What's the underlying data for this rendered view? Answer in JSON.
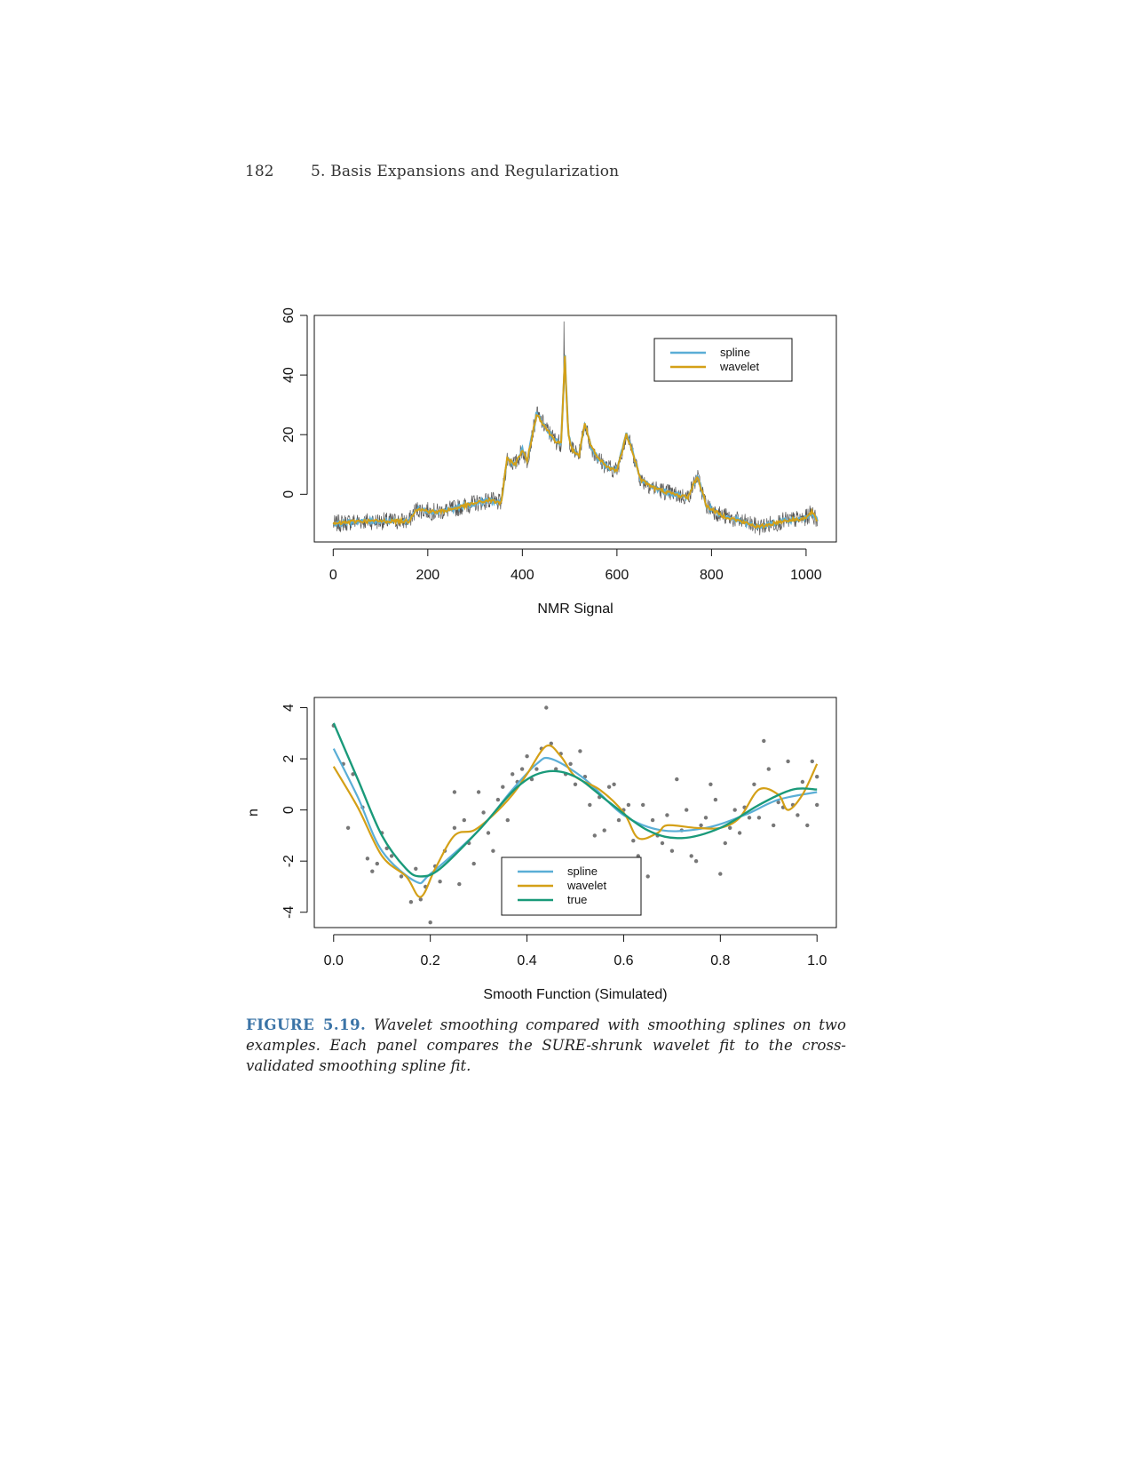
{
  "header": {
    "page_number": "182",
    "running_head": "5.  Basis Expansions and Regularization"
  },
  "chart_data": [
    {
      "type": "line",
      "xlabel": "NMR Signal",
      "ylabel": "",
      "xlim": [
        -40,
        1064
      ],
      "ylim": [
        -16,
        60
      ],
      "x_ticks": [
        "0",
        "200",
        "400",
        "600",
        "800",
        "1000"
      ],
      "y_ticks": [
        "0",
        "20",
        "40",
        "60"
      ],
      "legend_position": "top-right",
      "series": [
        {
          "name": "spline",
          "color": "#5aaed6"
        },
        {
          "name": "wavelet",
          "color": "#d4a017"
        }
      ],
      "raw_data_color": "#555555",
      "trend_knots": [
        [
          0,
          -10
        ],
        [
          50,
          -9
        ],
        [
          100,
          -9
        ],
        [
          160,
          -9
        ],
        [
          175,
          -5
        ],
        [
          220,
          -6
        ],
        [
          250,
          -5
        ],
        [
          300,
          -3
        ],
        [
          330,
          -2
        ],
        [
          355,
          -3
        ],
        [
          368,
          12
        ],
        [
          385,
          10
        ],
        [
          400,
          15
        ],
        [
          410,
          11
        ],
        [
          430,
          27
        ],
        [
          455,
          21
        ],
        [
          470,
          18
        ],
        [
          482,
          17
        ],
        [
          490,
          46
        ],
        [
          497,
          20
        ],
        [
          505,
          15
        ],
        [
          520,
          13
        ],
        [
          532,
          24
        ],
        [
          545,
          16
        ],
        [
          560,
          12
        ],
        [
          580,
          9
        ],
        [
          600,
          8
        ],
        [
          620,
          20
        ],
        [
          630,
          16
        ],
        [
          650,
          5
        ],
        [
          680,
          2
        ],
        [
          720,
          0
        ],
        [
          750,
          -1
        ],
        [
          770,
          6
        ],
        [
          790,
          -4
        ],
        [
          820,
          -7
        ],
        [
          860,
          -9
        ],
        [
          900,
          -11
        ],
        [
          950,
          -9
        ],
        [
          1000,
          -8
        ],
        [
          1012,
          -6
        ],
        [
          1024,
          -9
        ]
      ]
    },
    {
      "type": "line",
      "xlabel": "Smooth Function (Simulated)",
      "ylabel": "n",
      "xlim": [
        -0.04,
        1.04
      ],
      "ylim": [
        -4.6,
        4.4
      ],
      "x_ticks": [
        "0.0",
        "0.2",
        "0.4",
        "0.6",
        "0.8",
        "1.0"
      ],
      "y_ticks": [
        "-4",
        "-2",
        "0",
        "2",
        "4"
      ],
      "legend_position": "bottom-center",
      "series": [
        {
          "name": "spline",
          "color": "#5aaed6",
          "knots": [
            [
              0,
              2.4
            ],
            [
              0.05,
              0.5
            ],
            [
              0.1,
              -1.6
            ],
            [
              0.17,
              -2.8
            ],
            [
              0.2,
              -2.5
            ],
            [
              0.3,
              -0.8
            ],
            [
              0.37,
              0.8
            ],
            [
              0.42,
              1.8
            ],
            [
              0.45,
              2.0
            ],
            [
              0.52,
              1.2
            ],
            [
              0.6,
              -0.2
            ],
            [
              0.68,
              -0.8
            ],
            [
              0.77,
              -0.7
            ],
            [
              0.85,
              -0.2
            ],
            [
              0.92,
              0.4
            ],
            [
              1,
              0.7
            ]
          ]
        },
        {
          "name": "wavelet",
          "color": "#d4a017",
          "knots": [
            [
              0,
              1.7
            ],
            [
              0.05,
              0.1
            ],
            [
              0.1,
              -1.8
            ],
            [
              0.15,
              -2.6
            ],
            [
              0.18,
              -3.4
            ],
            [
              0.21,
              -2.3
            ],
            [
              0.25,
              -1.0
            ],
            [
              0.29,
              -0.8
            ],
            [
              0.33,
              -0.2
            ],
            [
              0.37,
              0.6
            ],
            [
              0.4,
              1.4
            ],
            [
              0.44,
              2.5
            ],
            [
              0.47,
              2.1
            ],
            [
              0.5,
              1.3
            ],
            [
              0.55,
              0.8
            ],
            [
              0.6,
              -0.1
            ],
            [
              0.63,
              -1.1
            ],
            [
              0.67,
              -0.9
            ],
            [
              0.69,
              -0.6
            ],
            [
              0.75,
              -0.7
            ],
            [
              0.8,
              -0.7
            ],
            [
              0.84,
              -0.3
            ],
            [
              0.88,
              0.8
            ],
            [
              0.92,
              0.6
            ],
            [
              0.94,
              0.0
            ],
            [
              0.97,
              0.6
            ],
            [
              1,
              1.8
            ]
          ]
        },
        {
          "name": "true",
          "color": "#1a9a7a",
          "knots": [
            [
              0,
              3.4
            ],
            [
              0.05,
              1.2
            ],
            [
              0.1,
              -1.0
            ],
            [
              0.15,
              -2.3
            ],
            [
              0.18,
              -2.6
            ],
            [
              0.22,
              -2.3
            ],
            [
              0.3,
              -0.8
            ],
            [
              0.38,
              0.9
            ],
            [
              0.44,
              1.5
            ],
            [
              0.5,
              1.3
            ],
            [
              0.57,
              0.3
            ],
            [
              0.65,
              -0.8
            ],
            [
              0.72,
              -1.1
            ],
            [
              0.8,
              -0.7
            ],
            [
              0.88,
              0.2
            ],
            [
              0.95,
              0.8
            ],
            [
              1,
              0.8
            ]
          ]
        }
      ],
      "points": [
        [
          0.0,
          3.3
        ],
        [
          0.02,
          1.8
        ],
        [
          0.03,
          -0.7
        ],
        [
          0.04,
          1.4
        ],
        [
          0.06,
          0.1
        ],
        [
          0.07,
          -1.9
        ],
        [
          0.08,
          -2.4
        ],
        [
          0.09,
          -2.1
        ],
        [
          0.1,
          -0.9
        ],
        [
          0.11,
          -1.5
        ],
        [
          0.12,
          -1.8
        ],
        [
          0.14,
          -2.6
        ],
        [
          0.16,
          -3.6
        ],
        [
          0.17,
          -2.3
        ],
        [
          0.18,
          -3.5
        ],
        [
          0.19,
          -3.0
        ],
        [
          0.2,
          -4.4
        ],
        [
          0.21,
          -2.2
        ],
        [
          0.22,
          -2.8
        ],
        [
          0.23,
          -1.6
        ],
        [
          0.25,
          -0.7
        ],
        [
          0.25,
          0.7
        ],
        [
          0.26,
          -2.9
        ],
        [
          0.27,
          -0.4
        ],
        [
          0.28,
          -1.3
        ],
        [
          0.29,
          -2.1
        ],
        [
          0.3,
          0.7
        ],
        [
          0.31,
          -0.1
        ],
        [
          0.32,
          -0.9
        ],
        [
          0.33,
          -1.6
        ],
        [
          0.34,
          0.4
        ],
        [
          0.35,
          0.9
        ],
        [
          0.36,
          -0.4
        ],
        [
          0.37,
          1.4
        ],
        [
          0.38,
          1.1
        ],
        [
          0.39,
          1.6
        ],
        [
          0.4,
          2.1
        ],
        [
          0.41,
          1.2
        ],
        [
          0.42,
          1.6
        ],
        [
          0.43,
          2.4
        ],
        [
          0.44,
          4.0
        ],
        [
          0.45,
          2.6
        ],
        [
          0.46,
          1.6
        ],
        [
          0.47,
          2.2
        ],
        [
          0.48,
          1.4
        ],
        [
          0.49,
          1.8
        ],
        [
          0.5,
          1.0
        ],
        [
          0.51,
          2.3
        ],
        [
          0.52,
          1.3
        ],
        [
          0.53,
          0.2
        ],
        [
          0.54,
          -1.0
        ],
        [
          0.55,
          0.5
        ],
        [
          0.56,
          -0.8
        ],
        [
          0.57,
          0.9
        ],
        [
          0.58,
          1.0
        ],
        [
          0.59,
          -0.4
        ],
        [
          0.6,
          0.0
        ],
        [
          0.61,
          0.2
        ],
        [
          0.62,
          -1.2
        ],
        [
          0.63,
          -1.8
        ],
        [
          0.64,
          0.2
        ],
        [
          0.65,
          -2.6
        ],
        [
          0.66,
          -0.4
        ],
        [
          0.67,
          -1.0
        ],
        [
          0.68,
          -1.3
        ],
        [
          0.69,
          -0.2
        ],
        [
          0.7,
          -1.6
        ],
        [
          0.71,
          1.2
        ],
        [
          0.72,
          -0.8
        ],
        [
          0.73,
          0.0
        ],
        [
          0.74,
          -1.8
        ],
        [
          0.75,
          -2.0
        ],
        [
          0.76,
          -0.6
        ],
        [
          0.77,
          -0.3
        ],
        [
          0.78,
          1.0
        ],
        [
          0.79,
          0.4
        ],
        [
          0.8,
          -2.5
        ],
        [
          0.81,
          -1.3
        ],
        [
          0.82,
          -0.7
        ],
        [
          0.83,
          0.0
        ],
        [
          0.84,
          -0.9
        ],
        [
          0.85,
          0.1
        ],
        [
          0.86,
          -0.3
        ],
        [
          0.87,
          1.0
        ],
        [
          0.88,
          -0.3
        ],
        [
          0.89,
          2.7
        ],
        [
          0.9,
          1.6
        ],
        [
          0.91,
          -0.6
        ],
        [
          0.92,
          0.3
        ],
        [
          0.93,
          0.1
        ],
        [
          0.94,
          1.9
        ],
        [
          0.95,
          0.2
        ],
        [
          0.96,
          -0.2
        ],
        [
          0.97,
          1.1
        ],
        [
          0.98,
          -0.6
        ],
        [
          0.99,
          1.9
        ],
        [
          1.0,
          0.2
        ],
        [
          1.0,
          1.3
        ]
      ]
    }
  ],
  "caption": {
    "label": "FIGURE 5.19.",
    "text": "Wavelet smoothing compared with smoothing splines on two examples. Each panel compares the SURE-shrunk wavelet fit to the cross-validated smoothing spline fit."
  }
}
